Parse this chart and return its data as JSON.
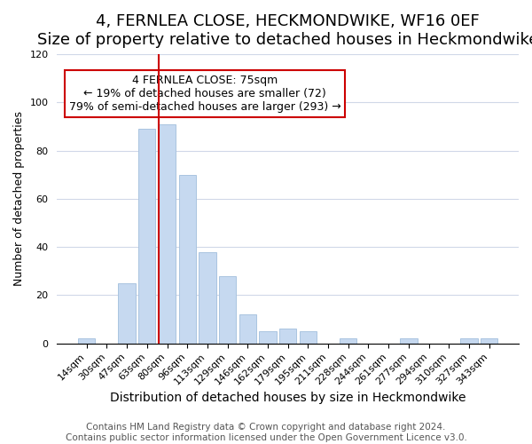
{
  "title": "4, FERNLEA CLOSE, HECKMONDWIKE, WF16 0EF",
  "subtitle": "Size of property relative to detached houses in Heckmondwike",
  "xlabel": "Distribution of detached houses by size in Heckmondwike",
  "ylabel": "Number of detached properties",
  "bar_labels": [
    "14sqm",
    "30sqm",
    "47sqm",
    "63sqm",
    "80sqm",
    "96sqm",
    "113sqm",
    "129sqm",
    "146sqm",
    "162sqm",
    "179sqm",
    "195sqm",
    "211sqm",
    "228sqm",
    "244sqm",
    "261sqm",
    "277sqm",
    "294sqm",
    "310sqm",
    "327sqm",
    "343sqm"
  ],
  "bar_values": [
    2,
    0,
    25,
    89,
    91,
    70,
    38,
    28,
    12,
    5,
    6,
    5,
    0,
    2,
    0,
    0,
    2,
    0,
    0,
    2,
    2
  ],
  "bar_color": "#c6d9f0",
  "bar_edge_color": "#aac4e0",
  "vline_color": "#cc0000",
  "vline_position": 3.575,
  "ylim": [
    0,
    120
  ],
  "yticks": [
    0,
    20,
    40,
    60,
    80,
    100,
    120
  ],
  "annotation_title": "4 FERNLEA CLOSE: 75sqm",
  "annotation_line1": "← 19% of detached houses are smaller (72)",
  "annotation_line2": "79% of semi-detached houses are larger (293) →",
  "footer_line1": "Contains HM Land Registry data © Crown copyright and database right 2024.",
  "footer_line2": "Contains public sector information licensed under the Open Government Licence v3.0.",
  "title_fontsize": 13,
  "xlabel_fontsize": 10,
  "ylabel_fontsize": 9,
  "tick_fontsize": 8,
  "footer_fontsize": 7.5,
  "annotation_fontsize": 9
}
